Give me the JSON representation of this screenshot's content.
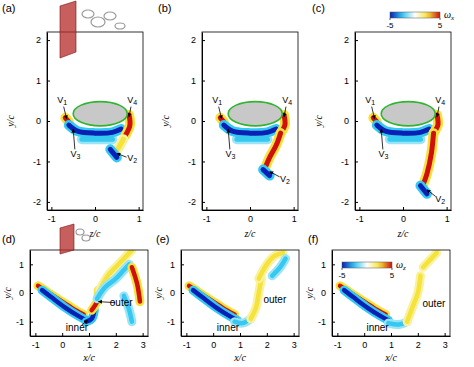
{
  "chart_data": [
    {
      "type": "contour",
      "title": "(a)",
      "x_label": "z/c",
      "y_label": "y/c",
      "xlim": [
        -1.1,
        1.1
      ],
      "ylim": [
        -2.2,
        2.2
      ],
      "xticks": [
        -1,
        0,
        1
      ],
      "yticks": [
        -2,
        -1,
        0,
        1,
        2
      ],
      "body": {
        "cx": 0.12,
        "cy": 0.18,
        "rx": 0.62,
        "ry": 0.3,
        "color": "#c8c8c8"
      },
      "structures": [
        {
          "omega": -2.5,
          "x": [
            -0.3,
            0.4
          ],
          "y": [
            -0.45,
            -0.45
          ]
        },
        {
          "omega": 5,
          "x": [
            -0.68,
            -0.6
          ],
          "y": [
            0.08,
            -0.02
          ]
        },
        {
          "omega": -5,
          "x": [
            -0.6,
            -0.4,
            0,
            0.4,
            0.6
          ],
          "y": [
            -0.1,
            -0.25,
            -0.3,
            -0.28,
            -0.2
          ]
        },
        {
          "omega": 5,
          "x": [
            0.78,
            0.8,
            0.7
          ],
          "y": [
            0.15,
            -0.1,
            -0.35
          ]
        },
        {
          "omega": 2.5,
          "x": [
            0.65,
            0.55,
            0.45
          ],
          "y": [
            -0.45,
            -0.65,
            -0.8
          ]
        },
        {
          "omega": -5,
          "x": [
            0.35,
            0.5
          ],
          "y": [
            -0.7,
            -0.9
          ]
        }
      ],
      "annotations": [
        {
          "text": "V1",
          "x": -0.75,
          "y": 0.5,
          "target": [
            -0.65,
            0.05
          ]
        },
        {
          "text": "V3",
          "x": -0.45,
          "y": -0.85,
          "target": [
            -0.5,
            -0.2
          ]
        },
        {
          "text": "V4",
          "x": 0.85,
          "y": 0.5,
          "target": [
            0.78,
            0.1
          ]
        },
        {
          "text": "V2",
          "x": 0.85,
          "y": -0.95,
          "target": [
            0.5,
            -0.8
          ]
        }
      ]
    },
    {
      "type": "contour",
      "title": "(b)",
      "x_label": "z/c",
      "y_label": "y/c",
      "xlim": [
        -1.1,
        1.1
      ],
      "ylim": [
        -2.2,
        2.2
      ],
      "xticks": [
        -1,
        0,
        1
      ],
      "yticks": [
        -2,
        -1,
        0,
        1,
        2
      ],
      "body": {
        "cx": 0.12,
        "cy": 0.18,
        "rx": 0.62,
        "ry": 0.3,
        "color": "#c8c8c8"
      },
      "structures": [
        {
          "omega": -2.5,
          "x": [
            -0.3,
            0.4
          ],
          "y": [
            -0.45,
            -0.45
          ]
        },
        {
          "omega": 5,
          "x": [
            -0.68,
            -0.6
          ],
          "y": [
            0.08,
            -0.02
          ]
        },
        {
          "omega": -5,
          "x": [
            -0.6,
            -0.4,
            0,
            0.4,
            0.6
          ],
          "y": [
            -0.1,
            -0.25,
            -0.3,
            -0.28,
            -0.2
          ]
        },
        {
          "omega": 5,
          "x": [
            0.78,
            0.8,
            0.7
          ],
          "y": [
            0.15,
            -0.1,
            -0.3
          ]
        },
        {
          "omega": 5,
          "x": [
            0.7,
            0.6,
            0.45,
            0.35
          ],
          "y": [
            -0.3,
            -0.6,
            -0.9,
            -1.15
          ]
        },
        {
          "omega": -5,
          "x": [
            0.3,
            0.45
          ],
          "y": [
            -1.2,
            -1.35
          ]
        }
      ],
      "annotations": [
        {
          "text": "V1",
          "x": -0.75,
          "y": 0.5,
          "target": [
            -0.65,
            0.05
          ]
        },
        {
          "text": "V3",
          "x": -0.45,
          "y": -0.85,
          "target": [
            -0.5,
            -0.2
          ]
        },
        {
          "text": "V4",
          "x": 0.85,
          "y": 0.5,
          "target": [
            0.78,
            0.1
          ]
        },
        {
          "text": "V2",
          "x": 0.8,
          "y": -1.45,
          "target": [
            0.45,
            -1.25
          ]
        }
      ]
    },
    {
      "type": "contour",
      "title": "(c)",
      "x_label": "z/c",
      "y_label": "y/c",
      "xlim": [
        -1.1,
        1.1
      ],
      "ylim": [
        -2.2,
        2.2
      ],
      "xticks": [
        -1,
        0,
        1
      ],
      "yticks": [
        -2,
        -1,
        0,
        1,
        2
      ],
      "body": {
        "cx": 0.12,
        "cy": 0.18,
        "rx": 0.62,
        "ry": 0.3,
        "color": "#c8c8c8"
      },
      "structures": [
        {
          "omega": -2.5,
          "x": [
            -0.3,
            0.4
          ],
          "y": [
            -0.45,
            -0.45
          ]
        },
        {
          "omega": 5,
          "x": [
            -0.68,
            -0.6
          ],
          "y": [
            0.08,
            -0.02
          ]
        },
        {
          "omega": -5,
          "x": [
            -0.6,
            -0.4,
            0,
            0.4,
            0.6
          ],
          "y": [
            -0.1,
            -0.25,
            -0.3,
            -0.28,
            -0.2
          ]
        },
        {
          "omega": 5,
          "x": [
            0.78,
            0.8,
            0.7
          ],
          "y": [
            0.15,
            -0.1,
            -0.3
          ]
        },
        {
          "omega": 5,
          "x": [
            0.7,
            0.65,
            0.55,
            0.45
          ],
          "y": [
            -0.3,
            -0.8,
            -1.3,
            -1.6
          ]
        },
        {
          "omega": -5,
          "x": [
            0.4,
            0.55
          ],
          "y": [
            -1.6,
            -1.8
          ]
        }
      ],
      "annotations": [
        {
          "text": "V1",
          "x": -0.75,
          "y": 0.5,
          "target": [
            -0.65,
            0.05
          ]
        },
        {
          "text": "V3",
          "x": -0.45,
          "y": -0.85,
          "target": [
            -0.5,
            -0.2
          ]
        },
        {
          "text": "V4",
          "x": 0.85,
          "y": 0.5,
          "target": [
            0.78,
            0.1
          ]
        },
        {
          "text": "V2",
          "x": 0.85,
          "y": -1.95,
          "target": [
            0.55,
            -1.7
          ]
        }
      ],
      "colorbar": {
        "label": "ωx",
        "range": [
          -5,
          5
        ],
        "ticks": [
          -5,
          5
        ]
      }
    },
    {
      "type": "contour",
      "title": "(d)",
      "x_label": "x/c",
      "y_label": "y/c",
      "xlim": [
        -1.2,
        3.2
      ],
      "ylim": [
        -1.5,
        1.5
      ],
      "xticks": [
        -1,
        0,
        1,
        2,
        3
      ],
      "yticks": [
        -1,
        0,
        1
      ],
      "structures": [
        {
          "omega": 5,
          "x": [
            -0.9,
            -0.5,
            0,
            0.5,
            0.8
          ],
          "y": [
            0.25,
            0.0,
            -0.3,
            -0.6,
            -0.75
          ]
        },
        {
          "omega": -5,
          "x": [
            -0.75,
            -0.4,
            0.1,
            0.6,
            0.9
          ],
          "y": [
            0.1,
            -0.15,
            -0.5,
            -0.8,
            -0.95
          ]
        },
        {
          "omega": -5,
          "x": [
            0.9,
            1.1,
            1.2
          ],
          "y": [
            -1.0,
            -0.9,
            -0.6
          ]
        },
        {
          "omega": 5,
          "x": [
            1.1,
            1.3,
            1.35
          ],
          "y": [
            -0.6,
            -0.3,
            0.1
          ]
        },
        {
          "omega": 2.5,
          "x": [
            1.4,
            1.7,
            2.1,
            2.4,
            2.6
          ],
          "y": [
            0.1,
            0.6,
            1.0,
            1.3,
            1.5
          ]
        },
        {
          "omega": -2.5,
          "x": [
            1.3,
            1.6,
            2.0,
            2.3,
            2.5
          ],
          "y": [
            -0.2,
            0.2,
            0.5,
            0.8,
            1.0
          ]
        },
        {
          "omega": 5,
          "x": [
            2.6,
            2.8,
            2.9
          ],
          "y": [
            0.9,
            0.3,
            -0.3
          ]
        },
        {
          "omega": -2.5,
          "x": [
            2.3,
            2.5,
            2.6
          ],
          "y": [
            -0.1,
            -0.6,
            -1.0
          ]
        }
      ],
      "annotations": [
        {
          "text": "inner",
          "x": 0.55,
          "y": -1.25,
          "target": [
            0.95,
            -0.95
          ]
        },
        {
          "text": "outer",
          "x": 2.2,
          "y": -0.35,
          "target": [
            1.35,
            -0.3
          ]
        }
      ]
    },
    {
      "type": "contour",
      "title": "(e)",
      "x_label": "x/c",
      "y_label": "y/c",
      "xlim": [
        -1.2,
        3.2
      ],
      "ylim": [
        -1.5,
        1.5
      ],
      "xticks": [
        -1,
        0,
        1,
        2,
        3
      ],
      "yticks": [
        -1,
        0,
        1
      ],
      "structures": [
        {
          "omega": 5,
          "x": [
            -0.9,
            -0.5,
            0,
            0.5,
            0.8
          ],
          "y": [
            0.25,
            0.0,
            -0.3,
            -0.6,
            -0.75
          ]
        },
        {
          "omega": -5,
          "x": [
            -0.75,
            -0.4,
            0.1,
            0.6,
            0.9
          ],
          "y": [
            0.1,
            -0.15,
            -0.5,
            -0.8,
            -0.95
          ]
        },
        {
          "omega": -2.5,
          "x": [
            0.8,
            1.1,
            1.4
          ],
          "y": [
            -1.0,
            -1.05,
            -0.9
          ]
        },
        {
          "omega": 2.5,
          "x": [
            1.4,
            1.6,
            1.7,
            1.8
          ],
          "y": [
            -0.9,
            -0.5,
            0,
            0.5
          ]
        },
        {
          "omega": 2.5,
          "x": [
            1.7,
            2.0,
            2.3,
            2.6
          ],
          "y": [
            0.5,
            1.0,
            1.3,
            1.4
          ]
        },
        {
          "omega": -2.5,
          "x": [
            2.2,
            2.5,
            2.7
          ],
          "y": [
            0.6,
            0.9,
            1.2
          ]
        }
      ],
      "annotations": [
        {
          "text": "inner",
          "x": 0.55,
          "y": -1.25
        },
        {
          "text": "outer",
          "x": 2.3,
          "y": -0.25
        }
      ]
    },
    {
      "type": "contour",
      "title": "(f)",
      "x_label": "x/c",
      "y_label": "y/c",
      "xlim": [
        -1.2,
        3.2
      ],
      "ylim": [
        -1.5,
        1.5
      ],
      "xticks": [
        -1,
        0,
        1,
        2,
        3
      ],
      "yticks": [
        -1,
        0,
        1
      ],
      "structures": [
        {
          "omega": 5,
          "x": [
            -0.9,
            -0.5,
            0,
            0.5,
            0.8
          ],
          "y": [
            0.25,
            0.0,
            -0.3,
            -0.6,
            -0.75
          ]
        },
        {
          "omega": -5,
          "x": [
            -0.75,
            -0.4,
            0.1,
            0.6,
            0.9
          ],
          "y": [
            0.1,
            -0.15,
            -0.5,
            -0.8,
            -0.95
          ]
        },
        {
          "omega": -2.5,
          "x": [
            0.9,
            1.3,
            1.6
          ],
          "y": [
            -1.05,
            -1.1,
            -1.0
          ]
        },
        {
          "omega": 2.5,
          "x": [
            1.6,
            1.8,
            2.0,
            2.1
          ],
          "y": [
            -1.0,
            -0.5,
            0,
            0.6
          ]
        },
        {
          "omega": 2.5,
          "x": [
            2.2,
            2.5,
            2.7
          ],
          "y": [
            0.9,
            1.2,
            1.4
          ]
        }
      ],
      "annotations": [
        {
          "text": "inner",
          "x": 0.5,
          "y": -1.25
        },
        {
          "text": "outer",
          "x": 2.6,
          "y": -0.4
        }
      ],
      "colorbar": {
        "label": "ωz",
        "range": [
          -5,
          5
        ],
        "ticks": [
          -5,
          5
        ]
      }
    }
  ]
}
